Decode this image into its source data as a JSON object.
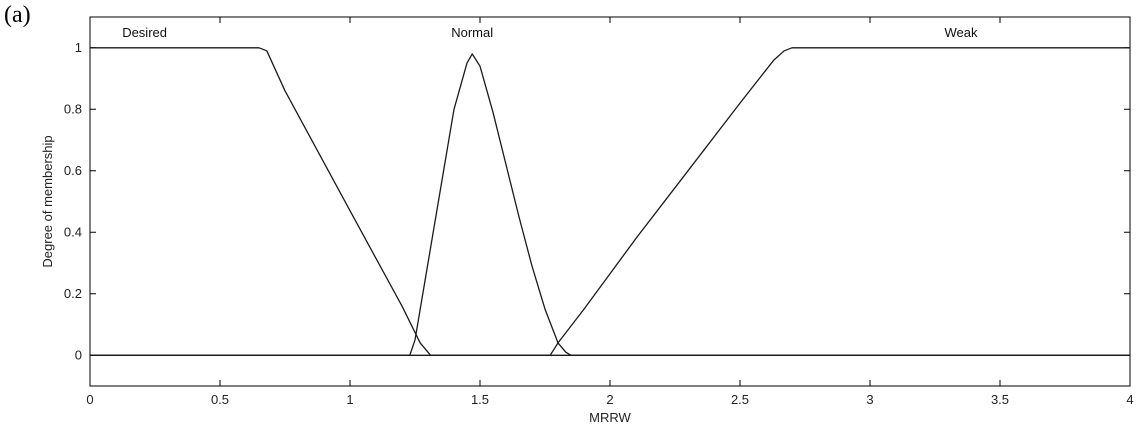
{
  "panel_label": "(a)",
  "chart_data": {
    "type": "line",
    "title": "",
    "xlabel": "MRRW",
    "ylabel": "Degree of membership",
    "xlim": [
      0,
      4
    ],
    "ylim": [
      -0.1,
      1.1
    ],
    "xticks": [
      0,
      0.5,
      1,
      1.5,
      2,
      2.5,
      3,
      3.5,
      4
    ],
    "xtick_labels": [
      "0",
      "0.5",
      "1",
      "1.5",
      "2",
      "2.5",
      "3",
      "3.5",
      "4"
    ],
    "yticks": [
      0,
      0.2,
      0.4,
      0.6,
      0.8,
      1
    ],
    "ytick_labels": [
      "0",
      "0.2",
      "0.4",
      "0.6",
      "0.8",
      "1"
    ],
    "grid": false,
    "series": [
      {
        "name": "Desired",
        "label_x": 0.21,
        "x": [
          0,
          0.65,
          0.68,
          0.75,
          1.0,
          1.2,
          1.27,
          1.31,
          4
        ],
        "y": [
          1,
          1,
          0.99,
          0.86,
          0.47,
          0.16,
          0.04,
          0,
          0
        ]
      },
      {
        "name": "Normal",
        "label_x": 1.47,
        "x": [
          0,
          1.23,
          1.25,
          1.3,
          1.35,
          1.4,
          1.45,
          1.47,
          1.5,
          1.55,
          1.6,
          1.65,
          1.7,
          1.75,
          1.8,
          1.83,
          1.85,
          4
        ],
        "y": [
          0,
          0,
          0.05,
          0.3,
          0.55,
          0.8,
          0.95,
          0.98,
          0.94,
          0.79,
          0.62,
          0.45,
          0.29,
          0.15,
          0.04,
          0.01,
          0,
          0
        ]
      },
      {
        "name": "Weak",
        "label_x": 3.35,
        "x": [
          0,
          1.77,
          1.8,
          1.9,
          2.1,
          2.3,
          2.5,
          2.63,
          2.67,
          2.7,
          4
        ],
        "y": [
          0,
          0,
          0.04,
          0.15,
          0.38,
          0.6,
          0.82,
          0.96,
          0.99,
          1,
          1
        ]
      }
    ]
  }
}
